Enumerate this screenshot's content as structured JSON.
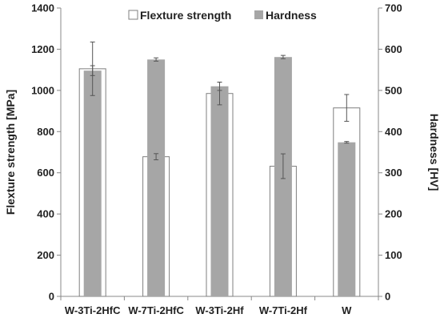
{
  "chart_data": {
    "type": "bar",
    "categories": [
      "W-3Ti-2HfC",
      "W-7Ti-2HfC",
      "W-3Ti-2Hf",
      "W-7Ti-2Hf",
      "W"
    ],
    "series": [
      {
        "name": "Flexture strength",
        "axis": "left",
        "style": "white-outline",
        "values": [
          1105,
          678,
          985,
          632,
          915
        ],
        "errors": [
          130,
          15,
          55,
          60,
          65
        ]
      },
      {
        "name": "Hardness",
        "axis": "right",
        "style": "gray-fill",
        "values": [
          548,
          575,
          510,
          581,
          374
        ],
        "errors": [
          12,
          4,
          10,
          4,
          2
        ]
      }
    ],
    "ylabel": "Flexture strength [MPa]",
    "y2label": "Hardness [HV]",
    "ylim": [
      0,
      1400
    ],
    "y2lim": [
      0,
      700
    ],
    "yticks": [
      0,
      200,
      400,
      600,
      800,
      1000,
      1200,
      1400
    ],
    "y2ticks": [
      0,
      100,
      200,
      300,
      400,
      500,
      600,
      700
    ],
    "grid": false,
    "legend_position": "top-center",
    "colors": {
      "outline": "#7f7f7f",
      "fill_white": "#ffffff",
      "fill_gray": "#a6a6a6",
      "error_bar": "#555555",
      "axis": "#888888"
    }
  }
}
